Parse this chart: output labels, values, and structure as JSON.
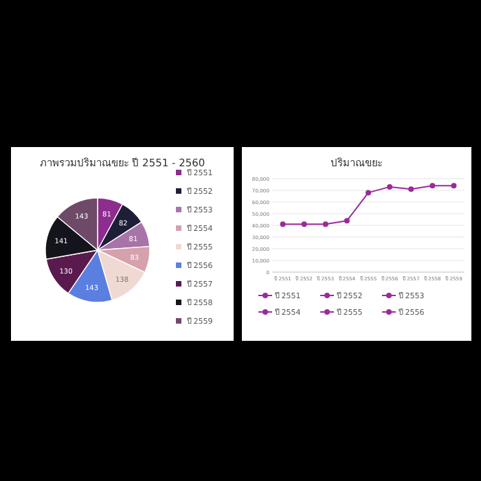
{
  "chart_data": [
    {
      "type": "pie",
      "title": "ภาพรวมปริมาณขยะ ปี 2551 - 2560",
      "categories": [
        "ปี 2551",
        "ปี 2552",
        "ปี 2553",
        "ปี 2554",
        "ปี 2555",
        "ปี 2556",
        "ปี 2557",
        "ปี 2558",
        "ปี 2559"
      ],
      "values": [
        81,
        82,
        81,
        83,
        138,
        143,
        130,
        141,
        143
      ],
      "colors": [
        "#8e2d8e",
        "#1e1e38",
        "#a874a8",
        "#d4a1ac",
        "#f0d9d2",
        "#5b7fe0",
        "#5a1a4e",
        "#14141c",
        "#6e4a68"
      ],
      "data_labels": true,
      "legend": "right"
    },
    {
      "type": "line",
      "title": "ปริมาณขยะ",
      "categories": [
        "ปี 2551",
        "ปี 2552",
        "ปี 2553",
        "ปี 2554",
        "ปี 2555",
        "ปี 2556",
        "ปี 2557",
        "ปี 2558",
        "ปี 2559"
      ],
      "ylim": [
        0,
        80000
      ],
      "yticks": [
        0,
        {
          "value": 10000,
          "label": "10,000"
        },
        {
          "value": 20000,
          "label": "20,000"
        },
        {
          "value": 30000,
          "label": "30,000"
        },
        {
          "value": 40000,
          "label": "40,000"
        },
        {
          "value": 50000,
          "label": "50,000"
        },
        {
          "value": 60000,
          "label": "60,000"
        },
        {
          "value": 70000,
          "label": "70,000"
        },
        {
          "value": 80000,
          "label": "80,000"
        }
      ],
      "grid": "y",
      "marker": "circle",
      "legend": "bottom",
      "series": [
        {
          "name": "ปี 2551",
          "color": "#9b2b9b",
          "values": [
            41000,
            41000,
            41000,
            44000,
            68000,
            73000,
            71000,
            74000,
            74000
          ]
        },
        {
          "name": "ปี 2552",
          "color": "#9b2b9b",
          "values": [
            null,
            null,
            null,
            null,
            null,
            null,
            null,
            null,
            null
          ]
        },
        {
          "name": "ปี 2553",
          "color": "#9b2b9b",
          "values": [
            null,
            null,
            null,
            null,
            null,
            null,
            null,
            null,
            null
          ]
        },
        {
          "name": "ปี 2554",
          "color": "#9b2b9b",
          "values": [
            null,
            null,
            null,
            null,
            null,
            null,
            null,
            null,
            null
          ]
        },
        {
          "name": "ปี 2555",
          "color": "#9b2b9b",
          "values": [
            null,
            null,
            null,
            null,
            null,
            null,
            null,
            null,
            null
          ]
        },
        {
          "name": "ปี 2556",
          "color": "#9b2b9b",
          "values": [
            null,
            null,
            null,
            null,
            null,
            null,
            null,
            null,
            null
          ]
        }
      ]
    }
  ]
}
